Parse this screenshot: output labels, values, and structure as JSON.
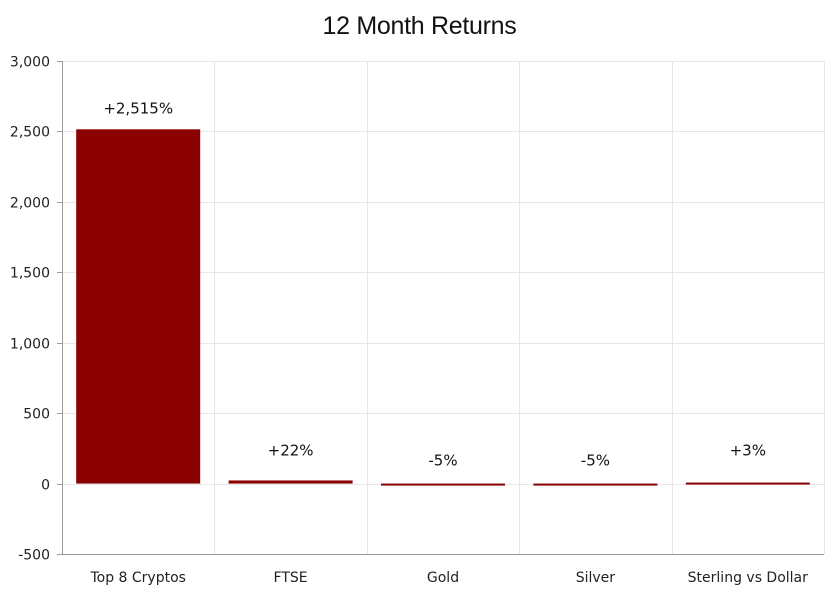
{
  "chart_data": {
    "type": "bar",
    "title": "12 Month Returns",
    "xlabel": "",
    "ylabel": "",
    "categories": [
      "Top 8 Cryptos",
      "FTSE",
      "Gold",
      "Silver",
      "Sterling vs Dollar"
    ],
    "values": [
      2515,
      22,
      -5,
      -5,
      3
    ],
    "data_labels": [
      "+2,515%",
      "+22%",
      "-5%",
      "-5%",
      "+3%"
    ],
    "ylim": [
      -500,
      3000
    ],
    "yticks": [
      -500,
      0,
      500,
      1000,
      1500,
      2000,
      2500,
      3000
    ],
    "ytick_labels": [
      "-500",
      "0",
      "500",
      "1,000",
      "1,500",
      "2,000",
      "2,500",
      "3,000"
    ],
    "bar_color": "#8b0000",
    "grid": true,
    "legend": "none"
  }
}
